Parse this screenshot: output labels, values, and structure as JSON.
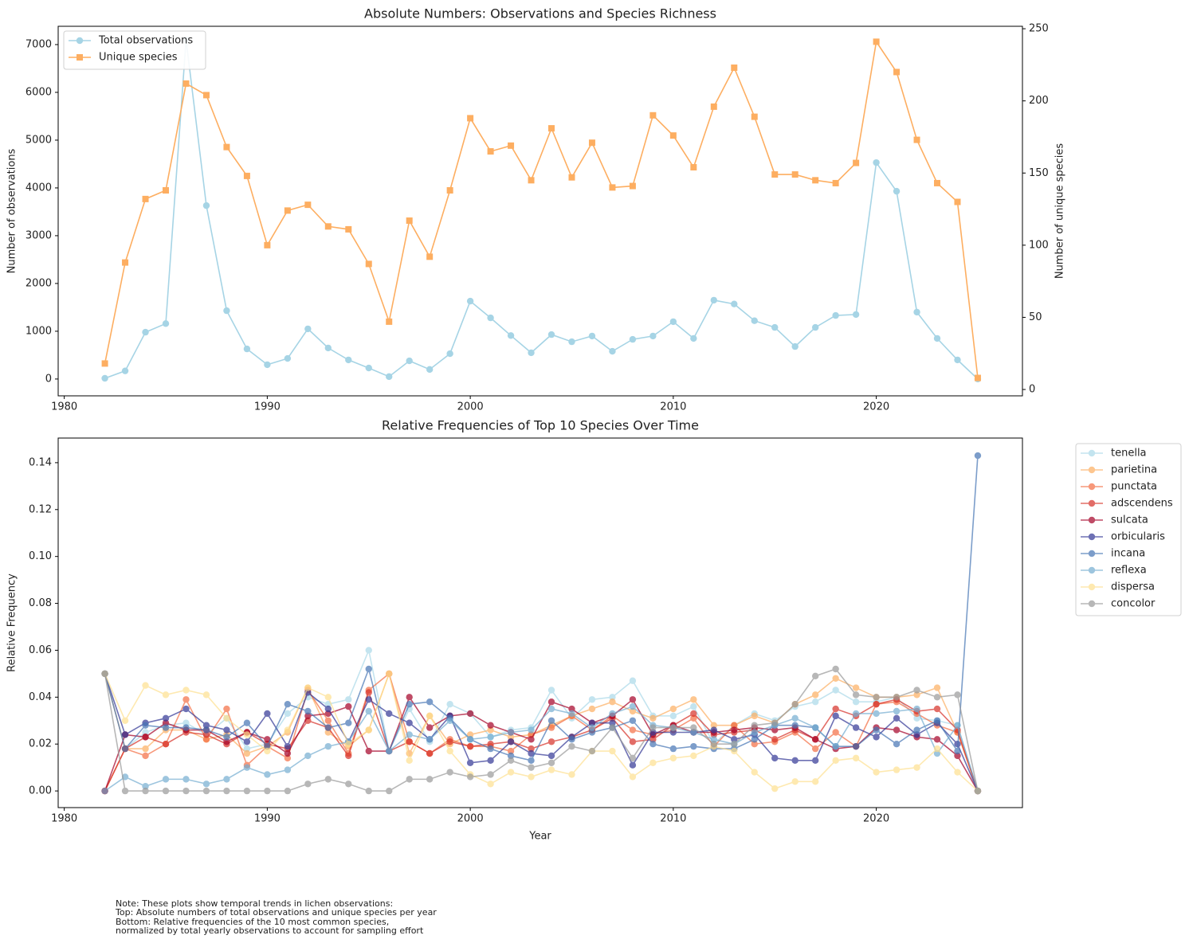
{
  "chart_data": [
    {
      "type": "line",
      "title": "Absolute Numbers: Observations and Species Richness",
      "ylabel": "Number of observations",
      "y2label": "Number of unique species",
      "color_axis_labels": true,
      "x": [
        1982,
        1983,
        1984,
        1985,
        1986,
        1987,
        1988,
        1989,
        1990,
        1991,
        1992,
        1993,
        1994,
        1995,
        1996,
        1997,
        1998,
        1999,
        2000,
        2001,
        2002,
        2003,
        2004,
        2005,
        2006,
        2007,
        2008,
        2009,
        2010,
        2011,
        2012,
        2013,
        2014,
        2015,
        2016,
        2017,
        2018,
        2019,
        2020,
        2021,
        2022,
        2023,
        2024,
        2025
      ],
      "xlim": [
        1979.7,
        2027.2
      ],
      "xticks": [
        1980,
        1990,
        2000,
        2010,
        2020
      ],
      "ylim": [
        -352,
        7383
      ],
      "yticks": [
        0,
        1000,
        2000,
        3000,
        4000,
        5000,
        6000,
        7000
      ],
      "y2lim": [
        -4.4,
        251.7
      ],
      "y2ticks": [
        0,
        50,
        100,
        150,
        200,
        250
      ],
      "legend": "upper left",
      "alpha": 1,
      "series": [
        {
          "name": "Total observations",
          "color": "#a6d4e5",
          "marker": "circle",
          "values": [
            15,
            170,
            980,
            1160,
            7100,
            3630,
            1430,
            630,
            300,
            430,
            1050,
            650,
            400,
            230,
            50,
            380,
            200,
            530,
            1630,
            1280,
            910,
            550,
            930,
            780,
            900,
            580,
            830,
            900,
            1200,
            850,
            1650,
            1570,
            1220,
            1080,
            680,
            1080,
            1330,
            1350,
            4530,
            3930,
            1400,
            850,
            400,
            0
          ]
        },
        {
          "name": "Unique species",
          "color": "#fdae61",
          "marker": "square",
          "axis": "y2",
          "values": [
            18,
            88,
            132,
            138,
            212,
            204,
            168,
            148,
            100,
            124,
            128,
            113,
            111,
            87,
            47,
            117,
            92,
            138,
            188,
            165,
            169,
            145,
            181,
            147,
            171,
            140,
            141,
            190,
            176,
            154,
            196,
            223,
            189,
            149,
            149,
            145,
            143,
            157,
            241,
            220,
            173,
            143,
            130,
            8
          ]
        }
      ]
    },
    {
      "type": "line",
      "title": "Relative Frequencies of Top 10 Species Over Time",
      "xlabel": "Year",
      "ylabel": "Relative Frequency",
      "x": [
        1982,
        1983,
        1984,
        1985,
        1986,
        1987,
        1988,
        1989,
        1990,
        1991,
        1992,
        1993,
        1994,
        1995,
        1996,
        1997,
        1998,
        1999,
        2000,
        2001,
        2002,
        2003,
        2004,
        2005,
        2006,
        2007,
        2008,
        2009,
        2010,
        2011,
        2012,
        2013,
        2014,
        2015,
        2016,
        2017,
        2018,
        2019,
        2020,
        2021,
        2022,
        2023,
        2024,
        2025
      ],
      "xlim": [
        1979.7,
        2027.2
      ],
      "xticks": [
        1980,
        1990,
        2000,
        2010,
        2020
      ],
      "ylim": [
        -0.0071,
        0.1505
      ],
      "yticks": [
        {
          "value": 0,
          "label": "0.00"
        },
        {
          "value": 0.02,
          "label": "0.02"
        },
        {
          "value": 0.04,
          "label": "0.04"
        },
        {
          "value": 0.06,
          "label": "0.06"
        },
        {
          "value": 0.08,
          "label": "0.08"
        },
        {
          "value": 0.1,
          "label": "0.10"
        },
        {
          "value": 0.12,
          "label": "0.12"
        },
        {
          "value": 0.14,
          "label": "0.14"
        }
      ],
      "legend": "outside right",
      "alpha": 0.7,
      "series": [
        {
          "name": "tenella",
          "color": "#abd9e9",
          "marker": "circle",
          "values": [
            0.05,
            0.018,
            0.025,
            0.028,
            0.029,
            0.024,
            0.031,
            0.018,
            0.02,
            0.033,
            0.04,
            0.037,
            0.039,
            0.06,
            0.017,
            0.035,
            0.021,
            0.037,
            0.033,
            0.023,
            0.026,
            0.027,
            0.043,
            0.031,
            0.039,
            0.04,
            0.047,
            0.032,
            0.032,
            0.036,
            0.02,
            0.028,
            0.033,
            0.03,
            0.036,
            0.038,
            0.043,
            0.038,
            0.038,
            0.04,
            0.031,
            0.03,
            0.028,
            0
          ]
        },
        {
          "name": "parietina",
          "color": "#fdae61",
          "marker": "circle",
          "values": [
            0.05,
            0.018,
            0.018,
            0.026,
            0.026,
            0.022,
            0.024,
            0.016,
            0.019,
            0.025,
            0.044,
            0.025,
            0.019,
            0.026,
            0.05,
            0.016,
            0.032,
            0.02,
            0.024,
            0.026,
            0.023,
            0.024,
            0.028,
            0.032,
            0.035,
            0.038,
            0.034,
            0.031,
            0.035,
            0.039,
            0.028,
            0.028,
            0.032,
            0.029,
            0.037,
            0.041,
            0.048,
            0.044,
            0.04,
            0.04,
            0.041,
            0.044,
            0.025,
            0
          ]
        },
        {
          "name": "punctata",
          "color": "#f46d43",
          "marker": "circle",
          "values": [
            0,
            0.018,
            0.015,
            0.02,
            0.039,
            0.022,
            0.035,
            0.011,
            0.019,
            0.014,
            0.043,
            0.03,
            0.016,
            0.043,
            0.05,
            0.021,
            0.016,
            0.022,
            0.019,
            0.019,
            0.017,
            0.024,
            0.027,
            0.032,
            0.026,
            0.032,
            0.026,
            0.024,
            0.026,
            0.031,
            0.019,
            0.028,
            0.02,
            0.021,
            0.025,
            0.018,
            0.025,
            0.019,
            0.037,
            0.038,
            0.033,
            0.028,
            0.025,
            0
          ]
        },
        {
          "name": "adscendens",
          "color": "#d73027",
          "marker": "circle",
          "values": [
            0,
            0.018,
            0.023,
            0.02,
            0.025,
            0.024,
            0.02,
            0.025,
            0.02,
            0.018,
            0.03,
            0.027,
            0.015,
            0.042,
            0.017,
            0.021,
            0.016,
            0.021,
            0.019,
            0.02,
            0.021,
            0.018,
            0.021,
            0.023,
            0.026,
            0.031,
            0.021,
            0.022,
            0.028,
            0.033,
            0.024,
            0.025,
            0.026,
            0.022,
            0.026,
            0.022,
            0.035,
            0.032,
            0.037,
            0.039,
            0.034,
            0.035,
            0.026,
            0
          ]
        },
        {
          "name": "sulcata",
          "color": "#a50026",
          "marker": "circle",
          "values": [
            0,
            0.024,
            0.023,
            0.029,
            0.026,
            0.026,
            0.021,
            0.025,
            0.022,
            0.016,
            0.032,
            0.033,
            0.036,
            0.017,
            0.017,
            0.04,
            0.027,
            0.032,
            0.033,
            0.028,
            0.025,
            0.022,
            0.038,
            0.035,
            0.029,
            0.032,
            0.039,
            0.024,
            0.028,
            0.025,
            0.025,
            0.026,
            0.027,
            0.026,
            0.027,
            0.022,
            0.018,
            0.019,
            0.027,
            0.026,
            0.023,
            0.022,
            0.015,
            0
          ]
        },
        {
          "name": "orbicularis",
          "color": "#313695",
          "marker": "circle",
          "values": [
            0.05,
            0.024,
            0.029,
            0.031,
            0.035,
            0.028,
            0.026,
            0.021,
            0.033,
            0.019,
            0.042,
            0.035,
            0.021,
            0.039,
            0.033,
            0.029,
            0.022,
            0.032,
            0.012,
            0.013,
            0.021,
            0.016,
            0.015,
            0.023,
            0.029,
            0.029,
            0.011,
            0.025,
            0.025,
            0.025,
            0.026,
            0.022,
            0.024,
            0.014,
            0.013,
            0.013,
            0.032,
            0.027,
            0.023,
            0.031,
            0.024,
            0.029,
            0.02,
            0
          ]
        },
        {
          "name": "incana",
          "color": "#4575b4",
          "marker": "circle",
          "values": [
            0.05,
            0.018,
            0.028,
            0.027,
            0.027,
            0.026,
            0.023,
            0.029,
            0.019,
            0.037,
            0.034,
            0.027,
            0.029,
            0.052,
            0.017,
            0.037,
            0.038,
            0.031,
            0.022,
            0.018,
            0.015,
            0.013,
            0.03,
            0.022,
            0.025,
            0.027,
            0.03,
            0.02,
            0.018,
            0.019,
            0.018,
            0.018,
            0.022,
            0.028,
            0.028,
            0.027,
            0.019,
            0.019,
            0.026,
            0.02,
            0.026,
            0.03,
            0.017,
            0.143
          ]
        },
        {
          "name": "reflexa",
          "color": "#74add1",
          "marker": "circle",
          "values": [
            0,
            0.006,
            0.002,
            0.005,
            0.005,
            0.003,
            0.005,
            0.01,
            0.007,
            0.009,
            0.015,
            0.019,
            0.021,
            0.034,
            0.017,
            0.024,
            0.022,
            0.03,
            0.022,
            0.023,
            0.025,
            0.026,
            0.035,
            0.033,
            0.027,
            0.033,
            0.036,
            0.028,
            0.027,
            0.025,
            0.022,
            0.02,
            0.025,
            0.028,
            0.031,
            0.027,
            0.019,
            0.033,
            0.033,
            0.034,
            0.035,
            0.016,
            0.028,
            0
          ]
        },
        {
          "name": "dispersa",
          "color": "#fee090",
          "marker": "circle",
          "values": [
            0.05,
            0.03,
            0.045,
            0.041,
            0.043,
            0.041,
            0.031,
            0.024,
            0.017,
            0.026,
            0.044,
            0.04,
            0.02,
            0.026,
            0.05,
            0.013,
            0.032,
            0.017,
            0.007,
            0.003,
            0.008,
            0.006,
            0.009,
            0.007,
            0.017,
            0.017,
            0.006,
            0.012,
            0.014,
            0.015,
            0.019,
            0.017,
            0.008,
            0.001,
            0.004,
            0.004,
            0.013,
            0.014,
            0.008,
            0.009,
            0.01,
            0.018,
            0.008,
            0
          ]
        },
        {
          "name": "concolor",
          "color": "#999999",
          "marker": "circle",
          "values": [
            0.05,
            0,
            0,
            0,
            0,
            0,
            0,
            0,
            0,
            0,
            0.003,
            0.005,
            0.003,
            0,
            0,
            0.005,
            0.005,
            0.008,
            0.006,
            0.007,
            0.013,
            0.01,
            0.012,
            0.019,
            0.017,
            0.027,
            0.014,
            0.027,
            0.027,
            0.027,
            0.02,
            0.02,
            0.028,
            0.029,
            0.037,
            0.049,
            0.052,
            0.041,
            0.04,
            0.04,
            0.043,
            0.04,
            0.041,
            0
          ]
        }
      ]
    }
  ],
  "note": [
    "Note: These plots show temporal trends in lichen observations:",
    "Top: Absolute numbers of total observations and unique species per year",
    "Bottom: Relative frequencies of the 10 most common species,",
    "normalized by total yearly observations to account for sampling effort"
  ]
}
